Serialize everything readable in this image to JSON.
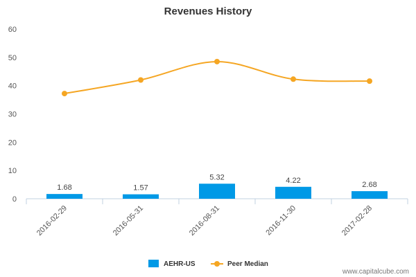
{
  "chart_data": {
    "type": "bar",
    "title": "Revenues History",
    "categories": [
      "2016-02-29",
      "2016-05-31",
      "2016-08-31",
      "2016-11-30",
      "2017-02-28"
    ],
    "series": [
      {
        "name": "AEHR-US",
        "type": "bar",
        "values": [
          1.68,
          1.57,
          5.32,
          4.22,
          2.68
        ],
        "labels": [
          "1.68",
          "1.57",
          "5.32",
          "4.22",
          "2.68"
        ],
        "color": "#0099e6"
      },
      {
        "name": "Peer Median",
        "type": "line",
        "values": [
          37.2,
          42.0,
          48.5,
          42.3,
          41.6
        ],
        "color": "#f5a623"
      }
    ],
    "ylim": [
      0,
      60
    ],
    "yticks": [
      0,
      10,
      20,
      30,
      40,
      50,
      60
    ],
    "xlabel": "",
    "ylabel": "",
    "grid": false,
    "legend": "bottom-center"
  },
  "credit": "www.capitalcube.com"
}
